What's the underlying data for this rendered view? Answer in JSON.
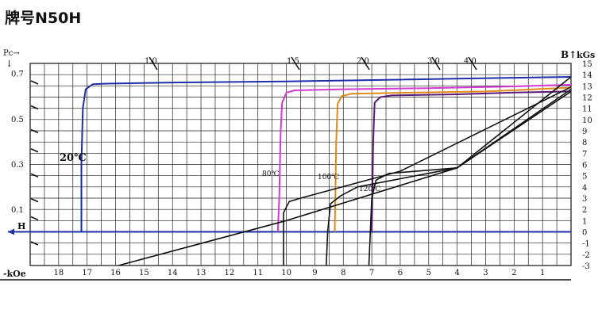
{
  "header": {
    "grade_label": "牌号N50H"
  },
  "chart_data": {
    "type": "line",
    "title": "牌号N50H",
    "xlabel": "-kOe",
    "x_tick_labels": [
      "18",
      "17",
      "16",
      "15",
      "14",
      "13",
      "12",
      "11",
      "10",
      "9",
      "8",
      "7",
      "6",
      "5",
      "4",
      "3",
      "2",
      "1"
    ],
    "xlim": [
      0,
      19
    ],
    "x_direction": "reversed",
    "left_axis": {
      "label": "Pc→\n↓",
      "ticks": [
        {
          "label": "0.7",
          "value": 0.7
        },
        {
          "label": "0.5",
          "value": 0.5
        },
        {
          "label": "0.3",
          "value": 0.3
        },
        {
          "label": "0.1",
          "value": 0.1
        }
      ]
    },
    "right_axis": {
      "label": "B↑ kGs",
      "ticks": [
        "15",
        "14",
        "13",
        "12",
        "11",
        "10",
        "9",
        "8",
        "7",
        "6",
        "5",
        "4",
        "3",
        "2",
        "1",
        "0",
        "-1",
        "-2",
        "-3"
      ],
      "ylim": [
        -3,
        15
      ]
    },
    "h_axis_label": "H",
    "permeance_scale": [
      {
        "label": "1.0",
        "value": 1.0
      },
      {
        "label": "1.5",
        "value": 1.5
      },
      {
        "label": "2.0",
        "value": 2.0
      },
      {
        "label": "3.0",
        "value": 3.0
      },
      {
        "label": "4.0",
        "value": 4.0
      }
    ],
    "grid": true,
    "colors": {
      "20": "#1f2fa8",
      "80": "#d23ad2",
      "100": "#e08a1a",
      "120": "#5a1a7a",
      "B_curve": "#111111",
      "axis": "#1f2fa8"
    },
    "series": [
      {
        "name": "20℃",
        "curve": "J",
        "color": "#1f2fa8",
        "points": [
          [
            17.2,
            0
          ],
          [
            17.2,
            6
          ],
          [
            17.15,
            11
          ],
          [
            17.05,
            12.7
          ],
          [
            16.8,
            13.15
          ],
          [
            16.3,
            13.2
          ],
          [
            14,
            13.3
          ],
          [
            10,
            13.4
          ],
          [
            6,
            13.55
          ],
          [
            2,
            13.72
          ],
          [
            0,
            13.8
          ]
        ]
      },
      {
        "name": "80℃",
        "curve": "J",
        "color": "#d23ad2",
        "points": [
          [
            10.3,
            0
          ],
          [
            10.25,
            3
          ],
          [
            10.2,
            9
          ],
          [
            10.15,
            11.5
          ],
          [
            10.0,
            12.4
          ],
          [
            9.7,
            12.6
          ],
          [
            8,
            12.7
          ],
          [
            5,
            12.8
          ],
          [
            2,
            12.95
          ],
          [
            0,
            13.1
          ]
        ]
      },
      {
        "name": "100℃",
        "curve": "J",
        "color": "#e08a1a",
        "points": [
          [
            8.3,
            0
          ],
          [
            8.28,
            3
          ],
          [
            8.25,
            8
          ],
          [
            8.2,
            11.4
          ],
          [
            8.05,
            12.1
          ],
          [
            7.7,
            12.3
          ],
          [
            6,
            12.38
          ],
          [
            3,
            12.5
          ],
          [
            0,
            12.85
          ]
        ]
      },
      {
        "name": "120℃",
        "curve": "J",
        "color": "#5a1a7a",
        "points": [
          [
            7.0,
            0
          ],
          [
            6.98,
            3
          ],
          [
            6.95,
            8
          ],
          [
            6.9,
            11.5
          ],
          [
            6.7,
            12.0
          ],
          [
            6.3,
            12.15
          ],
          [
            4,
            12.25
          ],
          [
            2,
            12.4
          ],
          [
            0,
            12.5
          ]
        ]
      },
      {
        "name": "20℃",
        "curve": "B",
        "color": "#111111",
        "points": [
          [
            15.9,
            -3
          ],
          [
            10,
            1
          ],
          [
            4,
            5.7
          ],
          [
            0,
            13.8
          ]
        ]
      },
      {
        "name": "80℃",
        "curve": "B",
        "color": "#111111",
        "points": [
          [
            10.1,
            -3
          ],
          [
            10.1,
            1.7
          ],
          [
            9.9,
            2.7
          ],
          [
            9.5,
            3.0
          ],
          [
            6,
            5.4
          ],
          [
            0,
            12.9
          ]
        ]
      },
      {
        "name": "100℃",
        "curve": "B",
        "color": "#111111",
        "points": [
          [
            8.6,
            -3
          ],
          [
            8.55,
            0
          ],
          [
            8.45,
            2.5
          ],
          [
            8.1,
            3.2
          ],
          [
            7.5,
            4.0
          ],
          [
            4,
            5.7
          ],
          [
            0,
            12.7
          ]
        ]
      },
      {
        "name": "120℃",
        "curve": "B",
        "color": "#111111",
        "points": [
          [
            7.1,
            -3
          ],
          [
            7.05,
            0
          ],
          [
            7.0,
            3
          ],
          [
            6.85,
            4.6
          ],
          [
            6.4,
            5.2
          ],
          [
            4,
            5.7
          ],
          [
            0,
            12.5
          ]
        ]
      }
    ],
    "annotations": [
      "20℃",
      "80℃",
      "100℃",
      "120℃"
    ]
  }
}
